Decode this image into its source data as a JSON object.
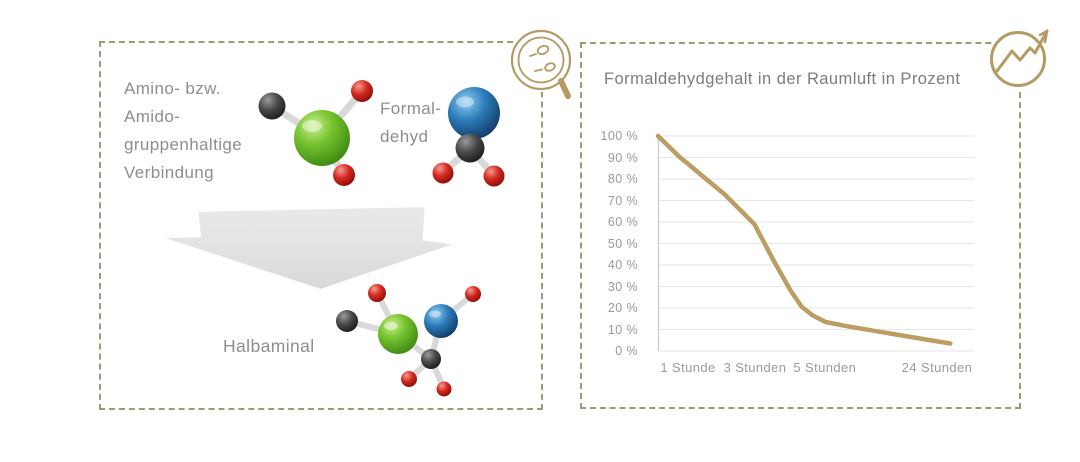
{
  "left_panel": {
    "reactant_label": "Amino- bzw.\nAmido-\ngruppenhaltige\nVerbindung",
    "formaldehyde_label": "Formal-\ndehyd",
    "product_label": "Halbaminal",
    "molecules": {
      "reactant": "amino-amido-compound-ball-and-stick",
      "formaldehyde": "formaldehyde-ball-and-stick",
      "product": "halbaminal-ball-and-stick"
    }
  },
  "right_panel": {
    "title": "Formaldehydgehalt in der Raumluft in Prozent"
  },
  "icons": {
    "left_badge": "magnifier-molecules-icon",
    "right_badge": "line-chart-circle-icon"
  },
  "colors": {
    "accent_gold": "#b49a63",
    "panel_border": "#9d9b72",
    "chart_line": "#bc9e63",
    "grid_line": "#e6e6e6",
    "axis_line": "#c8c8c8",
    "text_gray": "#8e8e8e",
    "title_gray": "#7c7c7c",
    "tick_gray": "#9a9a9a",
    "arrow_gray": "#e2e2e2"
  },
  "chart_data": {
    "type": "line",
    "title": "Formaldehydgehalt in der Raumluft in Prozent",
    "xlabel": "",
    "ylabel": "",
    "ylim": [
      0,
      100
    ],
    "grid": true,
    "legend": "none",
    "y_ticks": [
      "100 %",
      "90 %",
      "80 %",
      "70 %",
      "60 %",
      "50 %",
      "40 %",
      "30 %",
      "20 %",
      "10 %",
      "0 %"
    ],
    "x_ticks": [
      {
        "label": "1 Stunde",
        "pos": 0.095
      },
      {
        "label": "3 Stunden",
        "pos": 0.307
      },
      {
        "label": "5 Stunden",
        "pos": 0.528
      },
      {
        "label": "24 Stunden",
        "pos": 0.883
      }
    ],
    "series": [
      {
        "name": "Formaldehydgehalt in der Raumluft",
        "color": "#bc9e63",
        "points": [
          [
            0.0,
            100
          ],
          [
            0.07,
            90
          ],
          [
            0.095,
            87
          ],
          [
            0.16,
            79
          ],
          [
            0.21,
            73
          ],
          [
            0.305,
            59
          ],
          [
            0.37,
            41
          ],
          [
            0.42,
            28
          ],
          [
            0.455,
            20.5
          ],
          [
            0.49,
            16.5
          ],
          [
            0.53,
            13.5
          ],
          [
            0.6,
            11.5
          ],
          [
            0.7,
            9
          ],
          [
            0.8,
            6.5
          ],
          [
            0.925,
            3.5
          ]
        ]
      }
    ],
    "values_at_ticks": {
      "1 Stunde": 87,
      "3 Stunden": 59,
      "5 Stunden": 13.5,
      "24 Stunden": 3.5
    }
  }
}
